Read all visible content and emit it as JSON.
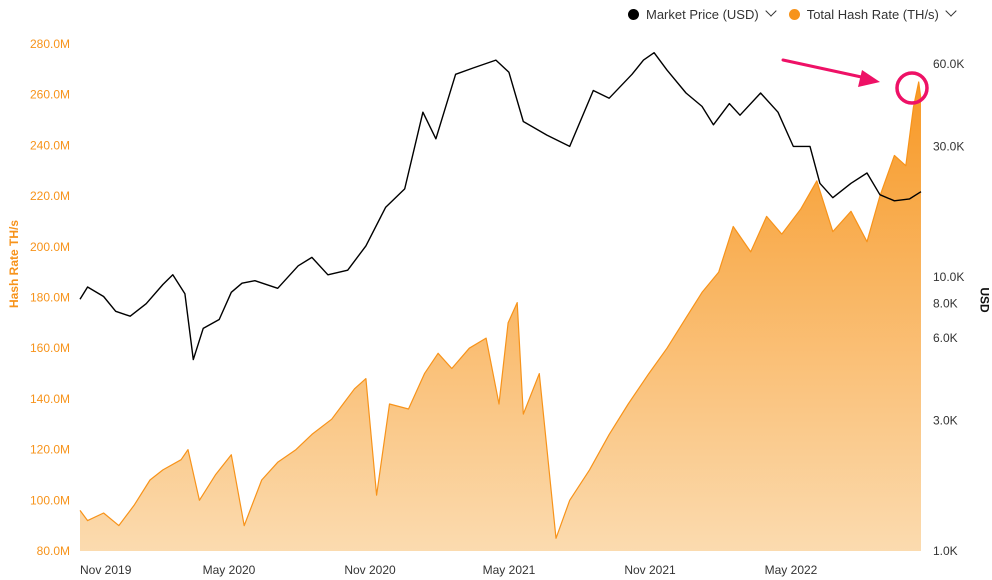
{
  "chart_data": {
    "type": "line",
    "x_ticks": [
      "Nov 2019",
      "May 2020",
      "Nov 2020",
      "May 2021",
      "Nov 2021",
      "May 2022"
    ],
    "y_left": {
      "label": "Hash Rate TH/s",
      "ticks": [
        "80.0M",
        "100.0M",
        "120.0M",
        "140.0M",
        "160.0M",
        "180.0M",
        "200.0M",
        "220.0M",
        "240.0M",
        "260.0M",
        "280.0M"
      ],
      "range": [
        80,
        280
      ],
      "color": "#f7931a"
    },
    "y_right": {
      "label": "USD",
      "scale": "log",
      "ticks": [
        "1.0K",
        "3.0K",
        "6.0K",
        "8.0K",
        "10.0K",
        "30.0K",
        "60.0K"
      ],
      "tick_values": [
        1000,
        3000,
        6000,
        8000,
        10000,
        30000,
        60000
      ],
      "range": [
        1000,
        80000
      ]
    },
    "legend": {
      "position": "top-right"
    },
    "series": [
      {
        "name": "Market Price (USD)",
        "color": "#000000",
        "values": [
          [
            "2019-10-15",
            8300
          ],
          [
            "2019-10-25",
            9200
          ],
          [
            "2019-11-15",
            8500
          ],
          [
            "2019-12-01",
            7500
          ],
          [
            "2019-12-20",
            7200
          ],
          [
            "2020-01-10",
            8000
          ],
          [
            "2020-02-01",
            9400
          ],
          [
            "2020-02-14",
            10200
          ],
          [
            "2020-03-01",
            8700
          ],
          [
            "2020-03-12",
            5000
          ],
          [
            "2020-03-25",
            6500
          ],
          [
            "2020-04-15",
            7000
          ],
          [
            "2020-05-01",
            8800
          ],
          [
            "2020-05-15",
            9500
          ],
          [
            "2020-06-01",
            9700
          ],
          [
            "2020-07-01",
            9100
          ],
          [
            "2020-07-28",
            11000
          ],
          [
            "2020-08-15",
            11800
          ],
          [
            "2020-09-05",
            10200
          ],
          [
            "2020-10-01",
            10600
          ],
          [
            "2020-10-25",
            13000
          ],
          [
            "2020-11-20",
            18000
          ],
          [
            "2020-12-15",
            21000
          ],
          [
            "2021-01-08",
            40000
          ],
          [
            "2021-01-25",
            32000
          ],
          [
            "2021-02-20",
            55000
          ],
          [
            "2021-03-15",
            58000
          ],
          [
            "2021-04-14",
            62000
          ],
          [
            "2021-05-01",
            56000
          ],
          [
            "2021-05-20",
            37000
          ],
          [
            "2021-06-20",
            33000
          ],
          [
            "2021-07-20",
            30000
          ],
          [
            "2021-08-20",
            48000
          ],
          [
            "2021-09-10",
            45000
          ],
          [
            "2021-10-10",
            55000
          ],
          [
            "2021-10-25",
            62000
          ],
          [
            "2021-11-08",
            66000
          ],
          [
            "2021-11-25",
            57000
          ],
          [
            "2021-12-20",
            47000
          ],
          [
            "2022-01-10",
            42000
          ],
          [
            "2022-01-25",
            36000
          ],
          [
            "2022-02-15",
            43000
          ],
          [
            "2022-03-01",
            39000
          ],
          [
            "2022-03-28",
            47000
          ],
          [
            "2022-04-20",
            40000
          ],
          [
            "2022-05-10",
            30000
          ],
          [
            "2022-06-01",
            30000
          ],
          [
            "2022-06-14",
            22000
          ],
          [
            "2022-07-01",
            19500
          ],
          [
            "2022-07-25",
            22000
          ],
          [
            "2022-08-15",
            24000
          ],
          [
            "2022-09-01",
            20000
          ],
          [
            "2022-09-20",
            19000
          ],
          [
            "2022-10-10",
            19300
          ],
          [
            "2022-10-25",
            20500
          ]
        ]
      },
      {
        "name": "Total Hash Rate (TH/s)",
        "color": "#f7931a",
        "values": [
          [
            "2019-10-15",
            96
          ],
          [
            "2019-10-25",
            92
          ],
          [
            "2019-11-15",
            95
          ],
          [
            "2019-12-05",
            90
          ],
          [
            "2019-12-25",
            98
          ],
          [
            "2020-01-15",
            108
          ],
          [
            "2020-02-01",
            112
          ],
          [
            "2020-02-25",
            116
          ],
          [
            "2020-03-05",
            120
          ],
          [
            "2020-03-20",
            100
          ],
          [
            "2020-04-10",
            110
          ],
          [
            "2020-05-01",
            118
          ],
          [
            "2020-05-18",
            90
          ],
          [
            "2020-06-10",
            108
          ],
          [
            "2020-07-01",
            115
          ],
          [
            "2020-07-25",
            120
          ],
          [
            "2020-08-15",
            126
          ],
          [
            "2020-09-10",
            132
          ],
          [
            "2020-09-25",
            138
          ],
          [
            "2020-10-10",
            144
          ],
          [
            "2020-10-25",
            148
          ],
          [
            "2020-11-08",
            102
          ],
          [
            "2020-11-25",
            138
          ],
          [
            "2020-12-20",
            136
          ],
          [
            "2021-01-10",
            150
          ],
          [
            "2021-01-28",
            158
          ],
          [
            "2021-02-15",
            152
          ],
          [
            "2021-03-10",
            160
          ],
          [
            "2021-04-01",
            164
          ],
          [
            "2021-04-18",
            138
          ],
          [
            "2021-04-30",
            170
          ],
          [
            "2021-05-12",
            178
          ],
          [
            "2021-05-20",
            134
          ],
          [
            "2021-06-10",
            150
          ],
          [
            "2021-07-02",
            85
          ],
          [
            "2021-07-20",
            100
          ],
          [
            "2021-08-15",
            112
          ],
          [
            "2021-09-10",
            126
          ],
          [
            "2021-10-05",
            138
          ],
          [
            "2021-11-01",
            150
          ],
          [
            "2021-11-25",
            160
          ],
          [
            "2021-12-20",
            172
          ],
          [
            "2022-01-10",
            182
          ],
          [
            "2022-02-01",
            190
          ],
          [
            "2022-02-20",
            208
          ],
          [
            "2022-03-15",
            198
          ],
          [
            "2022-04-05",
            212
          ],
          [
            "2022-04-25",
            205
          ],
          [
            "2022-05-20",
            215
          ],
          [
            "2022-06-10",
            226
          ],
          [
            "2022-07-01",
            206
          ],
          [
            "2022-07-25",
            214
          ],
          [
            "2022-08-15",
            202
          ],
          [
            "2022-09-01",
            220
          ],
          [
            "2022-09-20",
            236
          ],
          [
            "2022-10-05",
            232
          ],
          [
            "2022-10-15",
            255
          ],
          [
            "2022-10-22",
            265
          ],
          [
            "2022-10-25",
            258
          ]
        ]
      }
    ],
    "annotation": {
      "type": "arrow-and-circle",
      "color": "#ee1166",
      "target_date": "2022-10-22"
    }
  }
}
